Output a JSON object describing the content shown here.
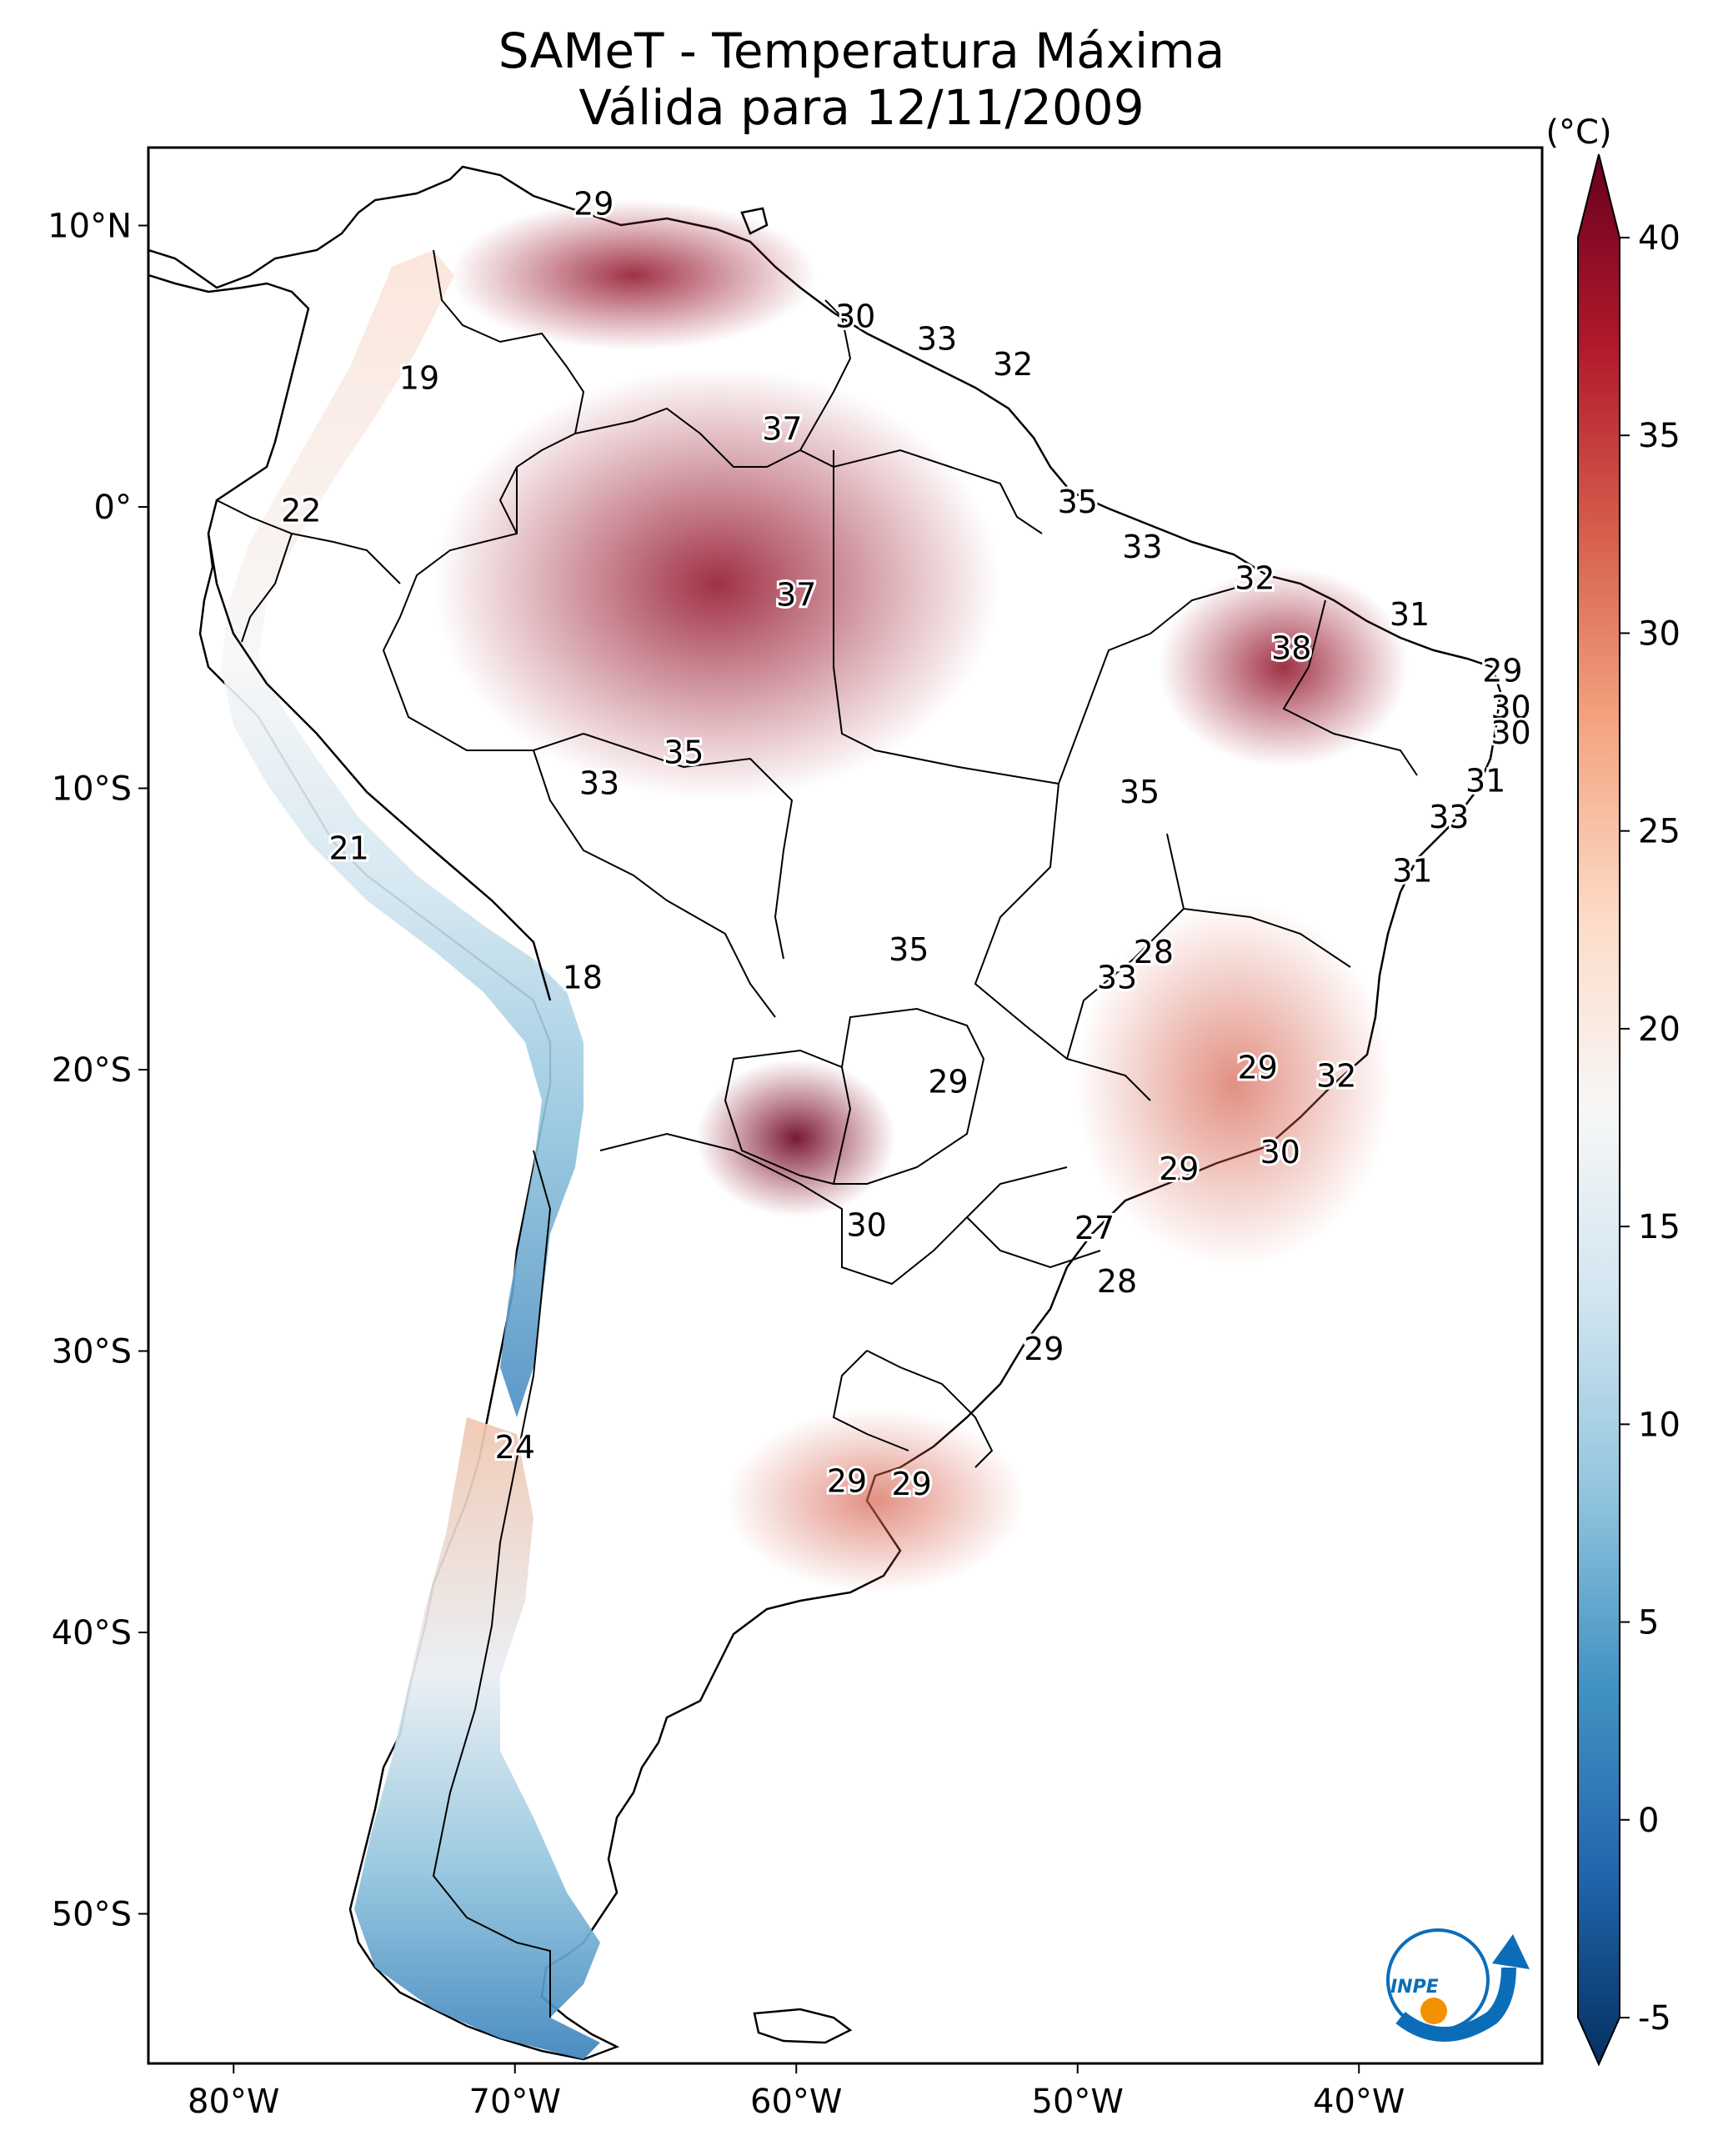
{
  "title": {
    "line1": "SAMeT - Temperatura Máxima",
    "line2": "Válida para 12/11/2009"
  },
  "colorbar": {
    "unit": "(°C)",
    "ticks": [
      40,
      35,
      30,
      25,
      20,
      15,
      10,
      5,
      0,
      -5
    ],
    "range": [
      -5,
      40
    ],
    "colors": [
      "#053061",
      "#2166ac",
      "#4393c3",
      "#92c5de",
      "#d1e5f0",
      "#f7f7f7",
      "#fddbc7",
      "#f4a582",
      "#d6604d",
      "#b2182b",
      "#67001f"
    ]
  },
  "axes": {
    "lon_ticks": [
      "80°W",
      "70°W",
      "60°W",
      "50°W",
      "40°W"
    ],
    "lat_ticks": [
      "10°N",
      "0°",
      "10°S",
      "20°S",
      "30°S",
      "40°S",
      "50°S"
    ]
  },
  "contour_labels": [
    {
      "text": "29",
      "lon": -67.2,
      "lat": 10.7
    },
    {
      "text": "30",
      "lon": -57.9,
      "lat": 6.7
    },
    {
      "text": "33",
      "lon": -55.0,
      "lat": 5.9
    },
    {
      "text": "32",
      "lon": -52.3,
      "lat": 5.0
    },
    {
      "text": "19",
      "lon": -73.4,
      "lat": 4.5
    },
    {
      "text": "37",
      "lon": -60.5,
      "lat": 2.7
    },
    {
      "text": "35",
      "lon": -50.0,
      "lat": 0.1
    },
    {
      "text": "22",
      "lon": -77.6,
      "lat": -0.2
    },
    {
      "text": "33",
      "lon": -47.7,
      "lat": -1.5
    },
    {
      "text": "32",
      "lon": -43.7,
      "lat": -2.6
    },
    {
      "text": "37",
      "lon": -60.0,
      "lat": -3.2
    },
    {
      "text": "31",
      "lon": -38.2,
      "lat": -3.9
    },
    {
      "text": "38",
      "lon": -42.4,
      "lat": -5.1
    },
    {
      "text": "29",
      "lon": -34.9,
      "lat": -5.9
    },
    {
      "text": "30",
      "lon": -34.6,
      "lat": -7.2
    },
    {
      "text": "30",
      "lon": -34.6,
      "lat": -8.1
    },
    {
      "text": "35",
      "lon": -64.0,
      "lat": -8.8
    },
    {
      "text": "33",
      "lon": -67.0,
      "lat": -9.9
    },
    {
      "text": "31",
      "lon": -35.5,
      "lat": -9.8
    },
    {
      "text": "35",
      "lon": -47.8,
      "lat": -10.2
    },
    {
      "text": "33",
      "lon": -36.8,
      "lat": -11.1
    },
    {
      "text": "21",
      "lon": -75.9,
      "lat": -12.2
    },
    {
      "text": "31",
      "lon": -38.1,
      "lat": -13.0
    },
    {
      "text": "35",
      "lon": -56.0,
      "lat": -15.8
    },
    {
      "text": "28",
      "lon": -47.3,
      "lat": -15.9
    },
    {
      "text": "18",
      "lon": -67.6,
      "lat": -16.8
    },
    {
      "text": "33",
      "lon": -48.6,
      "lat": -16.8
    },
    {
      "text": "29",
      "lon": -43.6,
      "lat": -20.0
    },
    {
      "text": "29",
      "lon": -54.6,
      "lat": -20.5
    },
    {
      "text": "32",
      "lon": -40.8,
      "lat": -20.3
    },
    {
      "text": "30",
      "lon": -42.8,
      "lat": -23.0
    },
    {
      "text": "29",
      "lon": -46.4,
      "lat": -23.6
    },
    {
      "text": "30",
      "lon": -57.5,
      "lat": -25.6
    },
    {
      "text": "27",
      "lon": -49.4,
      "lat": -25.7
    },
    {
      "text": "28",
      "lon": -48.6,
      "lat": -27.6
    },
    {
      "text": "29",
      "lon": -51.2,
      "lat": -30.0
    },
    {
      "text": "24",
      "lon": -70.0,
      "lat": -33.5
    },
    {
      "text": "29",
      "lon": -58.2,
      "lat": -34.7
    },
    {
      "text": "29",
      "lon": -55.9,
      "lat": -34.8
    }
  ],
  "logo": {
    "text": "INPE",
    "colors": [
      "#0b6db8",
      "#f39200"
    ]
  }
}
